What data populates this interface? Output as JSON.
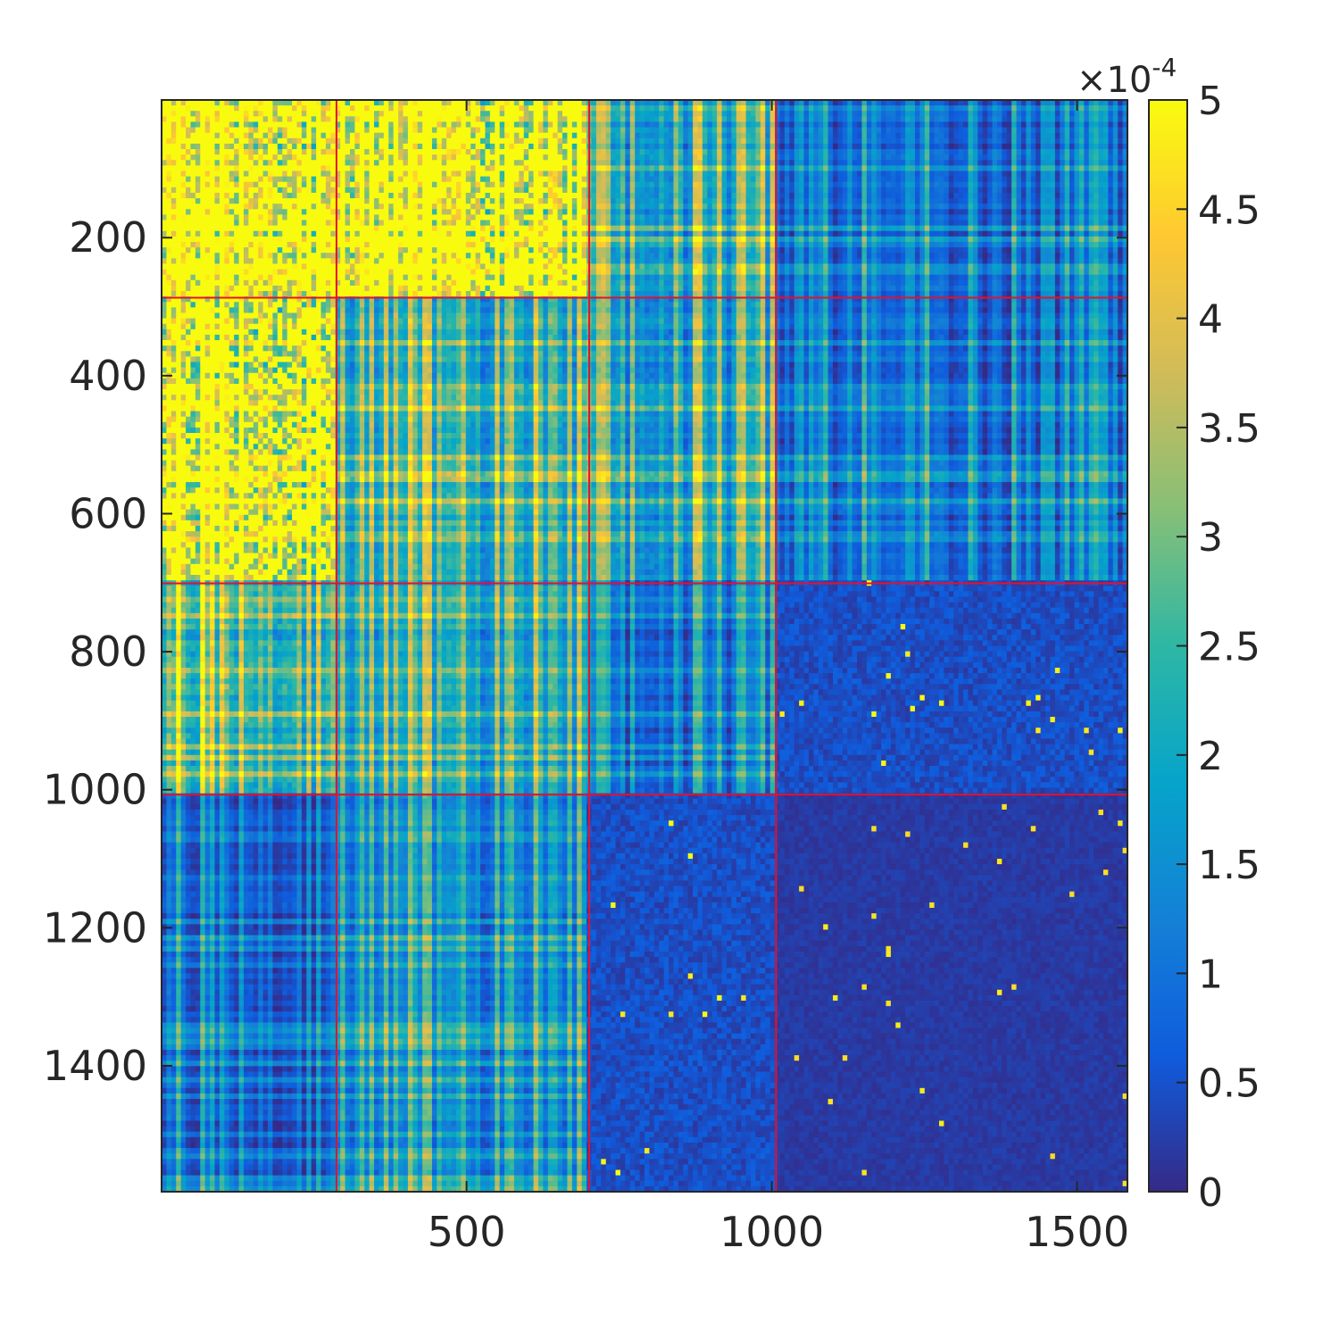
{
  "chart_data": {
    "type": "heatmap",
    "title": "",
    "xlabel": "",
    "ylabel": "",
    "matrix_size": 1582,
    "xlim": [
      1,
      1582
    ],
    "ylim": [
      1,
      1582
    ],
    "y_reversed": true,
    "x_ticks": [
      500,
      1000,
      1500
    ],
    "x_tick_labels": [
      "500",
      "1000",
      "1500"
    ],
    "y_ticks": [
      200,
      400,
      600,
      800,
      1000,
      1200,
      1400
    ],
    "y_tick_labels": [
      "200",
      "400",
      "600",
      "800",
      "1000",
      "1200",
      "1400"
    ],
    "block_boundaries": [
      287,
      701,
      1007
    ],
    "block_boundary_color": "#e8102a",
    "block_mean_intensity": [
      [
        0.88,
        0.74,
        0.42,
        0.2
      ],
      [
        0.8,
        0.45,
        0.4,
        0.22
      ],
      [
        0.58,
        0.4,
        0.22,
        0.09
      ],
      [
        0.2,
        0.28,
        0.09,
        0.04
      ]
    ],
    "colorbar": {
      "clim": [
        0,
        0.0005
      ],
      "ticks": [
        0,
        0.5,
        1,
        1.5,
        2,
        2.5,
        3,
        3.5,
        4,
        4.5,
        5
      ],
      "tick_labels": [
        "0",
        "0.5",
        "1",
        "1.5",
        "2",
        "2.5",
        "3",
        "3.5",
        "4",
        "4.5",
        "5"
      ],
      "multiplier_label": "×10",
      "multiplier_exponent": "-4",
      "colormap": "parula",
      "colormap_stops": [
        "#352a87",
        "#0f5cdd",
        "#1481d6",
        "#06a4ca",
        "#2eb7a4",
        "#87bf77",
        "#d1bb59",
        "#fec832",
        "#f9fb0e"
      ]
    },
    "grid": false,
    "legend": "none"
  }
}
